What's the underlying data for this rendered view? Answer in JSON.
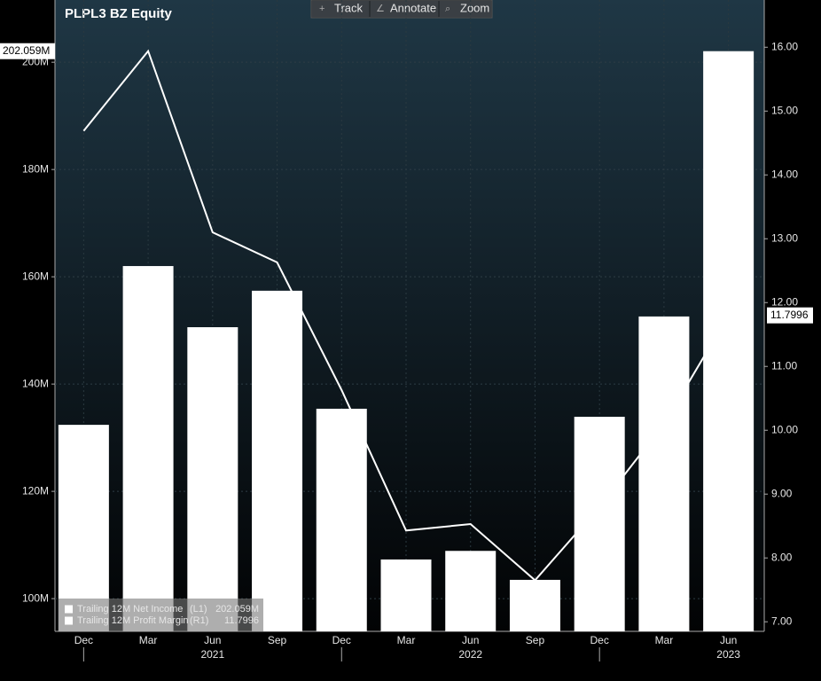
{
  "toolbar": [
    "Track",
    "Annotate",
    "Zoom"
  ],
  "chart_data": {
    "type": "bar",
    "title": "PLPL3 BZ Equity",
    "categories": [
      "Dec",
      "Mar",
      "Jun",
      "Sep",
      "Dec",
      "Mar",
      "Jun",
      "Sep",
      "Dec",
      "Mar",
      "Jun"
    ],
    "year_labels": [
      "2021",
      "2022",
      "2023"
    ],
    "series": [
      {
        "name": "Trailing 12M Net Income",
        "legend_tag": "(L1)",
        "type": "bar",
        "color": "#ffffff",
        "values": [
          132.4,
          162.0,
          150.6,
          157.4,
          135.4,
          107.3,
          108.9,
          103.5,
          133.9,
          152.6,
          202.059
        ],
        "value_labels": [
          null,
          null,
          null,
          null,
          null,
          null,
          null,
          null,
          null,
          null,
          "202.059M"
        ]
      },
      {
        "name": "Trailing 12M Profit Margin",
        "legend_tag": "(R1)",
        "type": "line",
        "axis": "y2",
        "color": "#ffffff",
        "values": [
          14.69,
          15.94,
          13.1,
          12.63,
          10.63,
          8.43,
          8.53,
          7.65,
          8.8,
          10.1,
          11.7996
        ]
      }
    ],
    "ylim": [
      93.9,
      211.6
    ],
    "yticks": [
      {
        "value": 100,
        "label": "100M"
      },
      {
        "value": 120,
        "label": "120M"
      },
      {
        "value": 140,
        "label": "140M"
      },
      {
        "value": 160,
        "label": "160M"
      },
      {
        "value": 180,
        "label": "180M"
      },
      {
        "value": 200,
        "label": "200M"
      }
    ],
    "y2lim": [
      6.85,
      16.74
    ],
    "y2ticks": [
      {
        "value": 7,
        "label": "7.00"
      },
      {
        "value": 8,
        "label": "8.00"
      },
      {
        "value": 9,
        "label": "9.00"
      },
      {
        "value": 10,
        "label": "10.00"
      },
      {
        "value": 11,
        "label": "11.00"
      },
      {
        "value": 12,
        "label": "12.00"
      },
      {
        "value": 13,
        "label": "13.00"
      },
      {
        "value": 14,
        "label": "14.00"
      },
      {
        "value": 15,
        "label": "15.00"
      },
      {
        "value": 16,
        "label": "16.00"
      }
    ],
    "grid": true
  }
}
